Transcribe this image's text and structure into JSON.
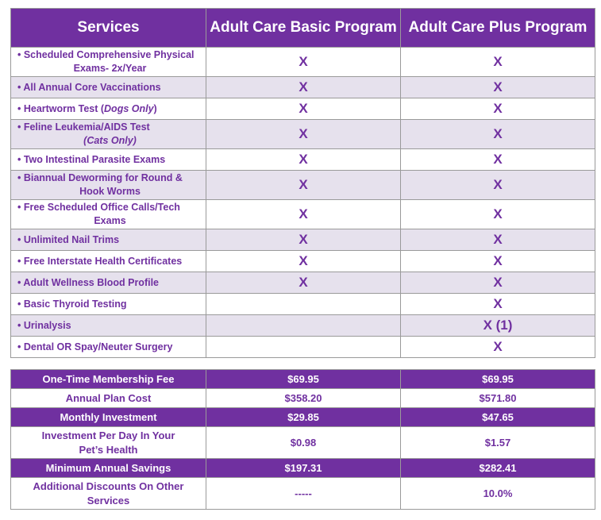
{
  "header": {
    "services": "Services",
    "basic": "Adult Care Basic Program",
    "plus": "Adult Care Plus Program"
  },
  "services": [
    {
      "line1": "• Scheduled Comprehensive Physical",
      "line2": "Exams- 2x/Year",
      "basic": "X",
      "plus": "X"
    },
    {
      "line1": "• All Annual Core Vaccinations",
      "basic": "X",
      "plus": "X"
    },
    {
      "line1": "• Heartworm Test (",
      "italic": "Dogs Only",
      "tail": ")",
      "basic": "X",
      "plus": "X"
    },
    {
      "line1": "• Feline Leukemia/AIDS Test",
      "line2": "(Cats Only)",
      "basic": "X",
      "plus": "X"
    },
    {
      "line1": "• Two Intestinal Parasite Exams",
      "basic": "X",
      "plus": "X"
    },
    {
      "line1": "• Biannual Deworming for Round &",
      "line2": "Hook Worms",
      "basic": "X",
      "plus": "X"
    },
    {
      "line1": "• Free Scheduled Office Calls/Tech",
      "line2": "Exams",
      "basic": "X",
      "plus": "X"
    },
    {
      "line1": "• Unlimited Nail Trims",
      "basic": "X",
      "plus": "X"
    },
    {
      "line1": "• Free Interstate Health Certificates",
      "basic": "X",
      "plus": "X"
    },
    {
      "line1": "• Adult Wellness Blood Profile",
      "basic": "X",
      "plus": "X"
    },
    {
      "line1": "• Basic Thyroid Testing",
      "basic": "",
      "plus": "X"
    },
    {
      "line1": "• Urinalysis",
      "basic": "",
      "plus": "X (1)"
    },
    {
      "line1": "• Dental OR Spay/Neuter Surgery",
      "basic": "",
      "plus": "X"
    }
  ],
  "pricing": [
    {
      "label": "One-Time Membership Fee",
      "basic": "$69.95",
      "plus": "$69.95",
      "style": "dark"
    },
    {
      "label": "Annual Plan Cost",
      "basic": "$358.20",
      "plus": "$571.80",
      "style": "light"
    },
    {
      "label": "Monthly Investment",
      "basic": "$29.85",
      "plus": "$47.65",
      "style": "dark"
    },
    {
      "label": "Investment Per Day In Your Pet’s Health",
      "basic": "$0.98",
      "plus": "$1.57",
      "style": "light"
    },
    {
      "label": "Minimum Annual Savings",
      "basic": "$197.31",
      "plus": "$282.41",
      "style": "dark"
    },
    {
      "label": "Additional Discounts On Other Services",
      "basic": "-----",
      "plus": "10.0%",
      "style": "light"
    }
  ],
  "colors": {
    "accent": "#7030a0",
    "alt_row": "#e6e1ed"
  }
}
